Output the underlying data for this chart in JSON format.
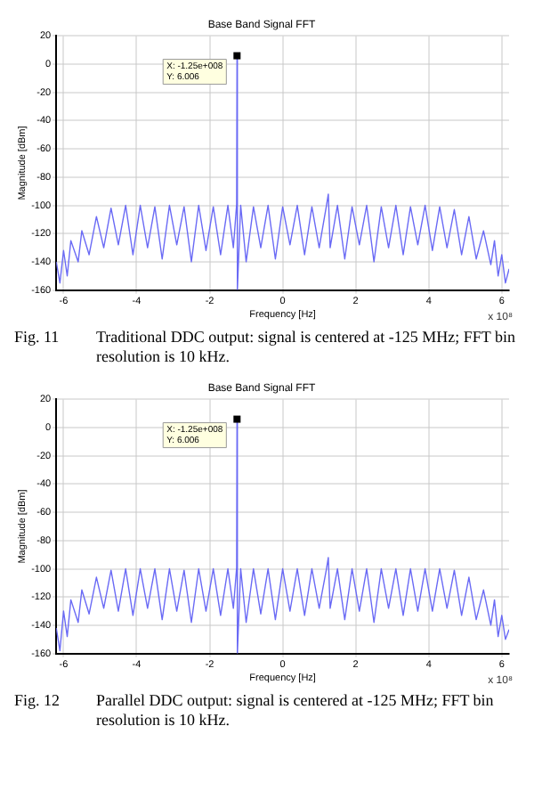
{
  "chart_data": [
    {
      "type": "line",
      "title": "Base Band Signal FFT",
      "xlabel": "Frequency [Hz]",
      "ylabel": "Magnitude [dBm]",
      "x": [
        -6.2,
        -6.1,
        -6.0,
        -5.9,
        -5.8,
        -5.6,
        -5.5,
        -5.3,
        -5.1,
        -4.9,
        -4.7,
        -4.5,
        -4.3,
        -4.1,
        -3.9,
        -3.7,
        -3.5,
        -3.3,
        -3.1,
        -2.9,
        -2.7,
        -2.5,
        -2.3,
        -2.1,
        -1.9,
        -1.7,
        -1.5,
        -1.35,
        -1.26,
        -1.25,
        -1.24,
        -1.15,
        -1.0,
        -0.8,
        -0.6,
        -0.4,
        -0.2,
        0,
        0.2,
        0.4,
        0.6,
        0.8,
        1.0,
        1.2,
        1.25,
        1.3,
        1.5,
        1.7,
        1.9,
        2.1,
        2.3,
        2.5,
        2.7,
        2.9,
        3.1,
        3.3,
        3.5,
        3.7,
        3.9,
        4.1,
        4.3,
        4.5,
        4.7,
        4.9,
        5.1,
        5.3,
        5.5,
        5.7,
        5.8,
        5.9,
        6.0,
        6.1,
        6.2
      ],
      "series": [
        {
          "color": "#6a6af5",
          "values": [
            -140,
            -155,
            -132,
            -150,
            -125,
            -140,
            -118,
            -135,
            -108,
            -130,
            -102,
            -128,
            -100,
            -135,
            -100,
            -130,
            -101,
            -138,
            -100,
            -128,
            -101,
            -140,
            -100,
            -132,
            -101,
            -135,
            -100,
            -130,
            -99,
            6.006,
            -160,
            -100,
            -140,
            -101,
            -130,
            -100,
            -138,
            -101,
            -128,
            -100,
            -135,
            -101,
            -130,
            -100,
            -92,
            -130,
            -100,
            -138,
            -101,
            -128,
            -100,
            -140,
            -101,
            -130,
            -100,
            -135,
            -101,
            -128,
            -100,
            -132,
            -101,
            -130,
            -103,
            -135,
            -108,
            -138,
            -118,
            -142,
            -125,
            -150,
            -135,
            -155,
            -145
          ]
        }
      ],
      "xlim": [
        -6.2,
        6.2
      ],
      "xticks": [
        -6,
        -4,
        -2,
        0,
        2,
        4,
        6
      ],
      "ylim": [
        -160,
        20
      ],
      "yticks": [
        -160,
        -140,
        -120,
        -100,
        -80,
        -60,
        -40,
        -20,
        0,
        20
      ],
      "grid": true,
      "marker": "none",
      "annotations": [
        {
          "text": "X: -1.25e+008\nY: 6.006",
          "x": -1.25,
          "y": 6.006
        },
        "x 10⁸",
        "Fig. 11",
        "Traditional DDC output: signal is centered at -125 MHz; FFT bin resolution is 10 kHz."
      ]
    },
    {
      "type": "line",
      "title": "Base Band Signal FFT",
      "xlabel": "Frequency [Hz]",
      "ylabel": "Magnitude [dBm]",
      "x": [
        -6.2,
        -6.1,
        -6.0,
        -5.9,
        -5.8,
        -5.6,
        -5.5,
        -5.3,
        -5.1,
        -4.9,
        -4.7,
        -4.5,
        -4.3,
        -4.1,
        -3.9,
        -3.7,
        -3.5,
        -3.3,
        -3.1,
        -2.9,
        -2.7,
        -2.5,
        -2.3,
        -2.1,
        -1.9,
        -1.7,
        -1.5,
        -1.35,
        -1.26,
        -1.25,
        -1.24,
        -1.15,
        -1.0,
        -0.8,
        -0.6,
        -0.4,
        -0.2,
        0,
        0.2,
        0.4,
        0.6,
        0.8,
        1.0,
        1.2,
        1.25,
        1.3,
        1.5,
        1.7,
        1.9,
        2.1,
        2.3,
        2.5,
        2.7,
        2.9,
        3.1,
        3.3,
        3.5,
        3.7,
        3.9,
        4.1,
        4.3,
        4.5,
        4.7,
        4.9,
        5.1,
        5.3,
        5.5,
        5.7,
        5.8,
        5.9,
        6.0,
        6.1,
        6.2
      ],
      "series": [
        {
          "color": "#6a6af5",
          "values": [
            -142,
            -158,
            -130,
            -148,
            -122,
            -138,
            -115,
            -132,
            -106,
            -128,
            -101,
            -130,
            -100,
            -133,
            -100,
            -128,
            -100,
            -136,
            -100,
            -130,
            -101,
            -138,
            -100,
            -130,
            -100,
            -133,
            -100,
            -128,
            -99,
            6.006,
            -160,
            -100,
            -138,
            -100,
            -132,
            -100,
            -136,
            -100,
            -130,
            -100,
            -133,
            -100,
            -128,
            -100,
            -92,
            -128,
            -100,
            -136,
            -100,
            -130,
            -100,
            -138,
            -100,
            -128,
            -100,
            -133,
            -100,
            -130,
            -100,
            -130,
            -100,
            -128,
            -101,
            -133,
            -106,
            -136,
            -115,
            -140,
            -122,
            -148,
            -133,
            -150,
            -143
          ]
        }
      ],
      "xlim": [
        -6.2,
        6.2
      ],
      "xticks": [
        -6,
        -4,
        -2,
        0,
        2,
        4,
        6
      ],
      "ylim": [
        -160,
        20
      ],
      "yticks": [
        -160,
        -140,
        -120,
        -100,
        -80,
        -60,
        -40,
        -20,
        0,
        20
      ],
      "grid": true,
      "marker": "none",
      "annotations": [
        {
          "text": "X: -1.25e+008\nY: 6.006",
          "x": -1.25,
          "y": 6.006
        },
        "x 10⁸",
        "Fig. 12",
        "Parallel DDC output: signal is centered at -125 MHz; FFT bin resolution is 10 kHz."
      ]
    }
  ]
}
